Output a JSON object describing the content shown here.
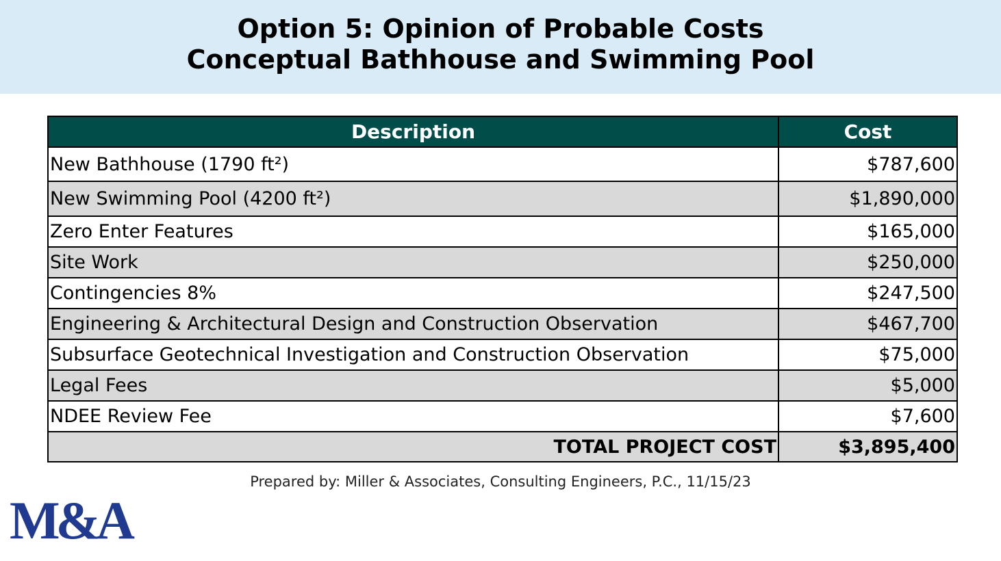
{
  "header": {
    "title_lines": [
      "Option 5: Opinion of Probable Costs",
      "Conceptual Bathhouse and Swimming Pool"
    ]
  },
  "table": {
    "columns": [
      "Description",
      "Cost"
    ],
    "rows": [
      [
        "New Bathhouse  (1790 ft²)",
        "$787,600"
      ],
      [
        "New Swimming Pool (4200 ft²)",
        "$1,890,000"
      ],
      [
        "Zero Enter Features",
        "$165,000"
      ],
      [
        "Site Work",
        "$250,000"
      ],
      [
        "Contingencies 8%",
        "$247,500"
      ],
      [
        "Engineering & Architectural Design and Construction Observation",
        "$467,700"
      ],
      [
        "Subsurface Geotechnical Investigation and Construction Observation",
        "$75,000"
      ],
      [
        "Legal Fees",
        "$5,000"
      ],
      [
        "NDEE Review Fee",
        "$7,600"
      ]
    ],
    "total": [
      "TOTAL PROJECT COST",
      "$3,895,400"
    ]
  },
  "footer": {
    "note": "Prepared by:  Miller & Associates, Consulting Engineers, P.C., 11/15/23"
  },
  "logo": {
    "text": "M&A"
  }
}
